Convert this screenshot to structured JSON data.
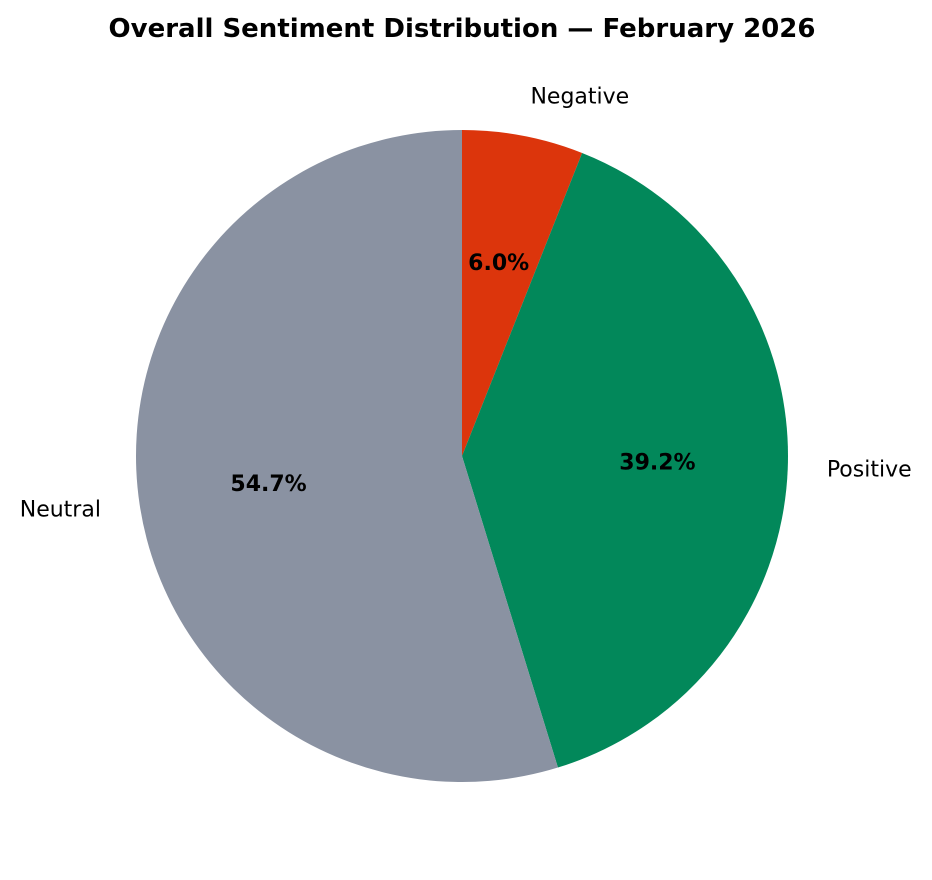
{
  "chart_data": {
    "type": "pie",
    "title": "Overall Sentiment Distribution — February 2026",
    "start": "top",
    "direction": "clockwise",
    "slices": [
      {
        "label": "Negative",
        "value": 6.0,
        "pct_label": "6.0%",
        "color": "#dc350c"
      },
      {
        "label": "Positive",
        "value": 39.2,
        "pct_label": "39.2%",
        "color": "#02885a"
      },
      {
        "label": "Neutral",
        "value": 54.7,
        "pct_label": "54.7%",
        "color": "#8a92a2"
      }
    ]
  }
}
